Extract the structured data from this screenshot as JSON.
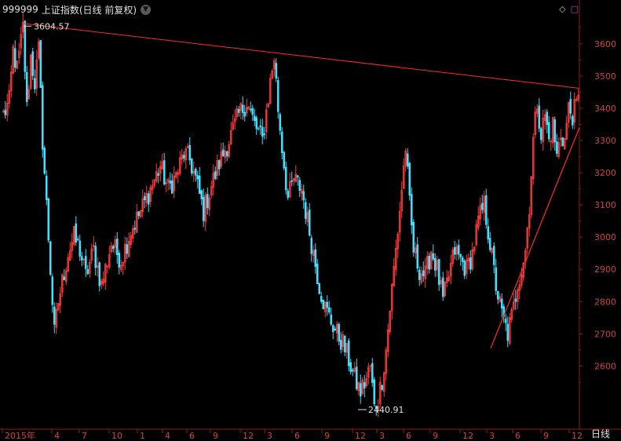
{
  "header": {
    "code": "999999",
    "name": "上证指数",
    "mode": "(日线 前复权)",
    "dropdown_icon": "chevron-down-icon"
  },
  "toolbar": {
    "diamond_icon": "◇",
    "square_icon": "□"
  },
  "period_button": "日线",
  "colors": {
    "background": "#000000",
    "up": "#ff3b3b",
    "down": "#3fe0ff",
    "axis": "#9e1515",
    "trendline": "#ff2a2a",
    "tick_text": "#d04040",
    "annotation": "#e0e0e0"
  },
  "chart_data": {
    "type": "candlestick",
    "ylim": [
      2450,
      3680
    ],
    "yticks": [
      2600,
      2700,
      2800,
      2900,
      3000,
      3100,
      3200,
      3300,
      3400,
      3500,
      3600
    ],
    "xlabels": [
      "2015年",
      "4",
      "7",
      "10",
      "1",
      "4",
      "6",
      "9",
      "12",
      "3",
      "6",
      "9",
      "12",
      "3",
      "6",
      "9",
      "12",
      "3",
      "6",
      "9",
      "12"
    ],
    "annotations": [
      {
        "label": "3604.57",
        "value": 3604.57
      },
      {
        "label": "2440.91",
        "value": 2440.91
      }
    ],
    "trendlines": [
      {
        "from": 3663,
        "to": 3462
      },
      {
        "from": 2655,
        "to": 3340
      }
    ],
    "price_path": [
      [
        0,
        3380
      ],
      [
        3,
        3420
      ],
      [
        5,
        3580
      ],
      [
        7,
        3520
      ],
      [
        10,
        3650
      ],
      [
        12,
        3400
      ],
      [
        14,
        3560
      ],
      [
        16,
        3480
      ],
      [
        18,
        3580
      ],
      [
        20,
        3300
      ],
      [
        22,
        3100
      ],
      [
        24,
        2900
      ],
      [
        26,
        2700
      ],
      [
        28,
        2800
      ],
      [
        30,
        2860
      ],
      [
        33,
        2950
      ],
      [
        36,
        3000
      ],
      [
        39,
        2960
      ],
      [
        42,
        2880
      ],
      [
        46,
        2960
      ],
      [
        50,
        2850
      ],
      [
        55,
        2980
      ],
      [
        60,
        2930
      ],
      [
        65,
        3020
      ],
      [
        70,
        3080
      ],
      [
        75,
        3150
      ],
      [
        80,
        3220
      ],
      [
        84,
        3150
      ],
      [
        88,
        3190
      ],
      [
        92,
        3260
      ],
      [
        95,
        3240
      ],
      [
        98,
        3180
      ],
      [
        102,
        3080
      ],
      [
        106,
        3160
      ],
      [
        110,
        3230
      ],
      [
        115,
        3300
      ],
      [
        120,
        3380
      ],
      [
        124,
        3420
      ],
      [
        128,
        3350
      ],
      [
        132,
        3300
      ],
      [
        136,
        3480
      ],
      [
        138,
        3560
      ],
      [
        140,
        3400
      ],
      [
        142,
        3280
      ],
      [
        145,
        3120
      ],
      [
        148,
        3180
      ],
      [
        152,
        3150
      ],
      [
        155,
        3050
      ],
      [
        158,
        2950
      ],
      [
        161,
        2850
      ],
      [
        164,
        2780
      ],
      [
        167,
        2740
      ],
      [
        170,
        2700
      ],
      [
        173,
        2670
      ],
      [
        176,
        2620
      ],
      [
        179,
        2560
      ],
      [
        182,
        2520
      ],
      [
        185,
        2560
      ],
      [
        187,
        2600
      ],
      [
        189,
        2470
      ],
      [
        191,
        2500
      ],
      [
        193,
        2560
      ],
      [
        195,
        2650
      ],
      [
        197,
        2780
      ],
      [
        199,
        2900
      ],
      [
        201,
        3020
      ],
      [
        203,
        3150
      ],
      [
        205,
        3280
      ],
      [
        207,
        3100
      ],
      [
        209,
        2960
      ],
      [
        212,
        2900
      ],
      [
        215,
        2880
      ],
      [
        218,
        2960
      ],
      [
        221,
        2900
      ],
      [
        224,
        2800
      ],
      [
        227,
        2880
      ],
      [
        230,
        2960
      ],
      [
        233,
        2930
      ],
      [
        236,
        2900
      ],
      [
        239,
        2950
      ],
      [
        242,
        3050
      ],
      [
        245,
        3100
      ],
      [
        248,
        2980
      ],
      [
        251,
        2850
      ],
      [
        254,
        2760
      ],
      [
        257,
        2700
      ],
      [
        260,
        2780
      ],
      [
        262,
        2860
      ],
      [
        264,
        2900
      ],
      [
        266,
        2960
      ],
      [
        268,
        3100
      ],
      [
        270,
        3300
      ],
      [
        272,
        3420
      ],
      [
        274,
        3320
      ],
      [
        276,
        3380
      ],
      [
        278,
        3300
      ],
      [
        280,
        3350
      ],
      [
        282,
        3250
      ],
      [
        284,
        3320
      ],
      [
        286,
        3300
      ],
      [
        288,
        3400
      ],
      [
        290,
        3380
      ],
      [
        293,
        3420
      ]
    ]
  }
}
